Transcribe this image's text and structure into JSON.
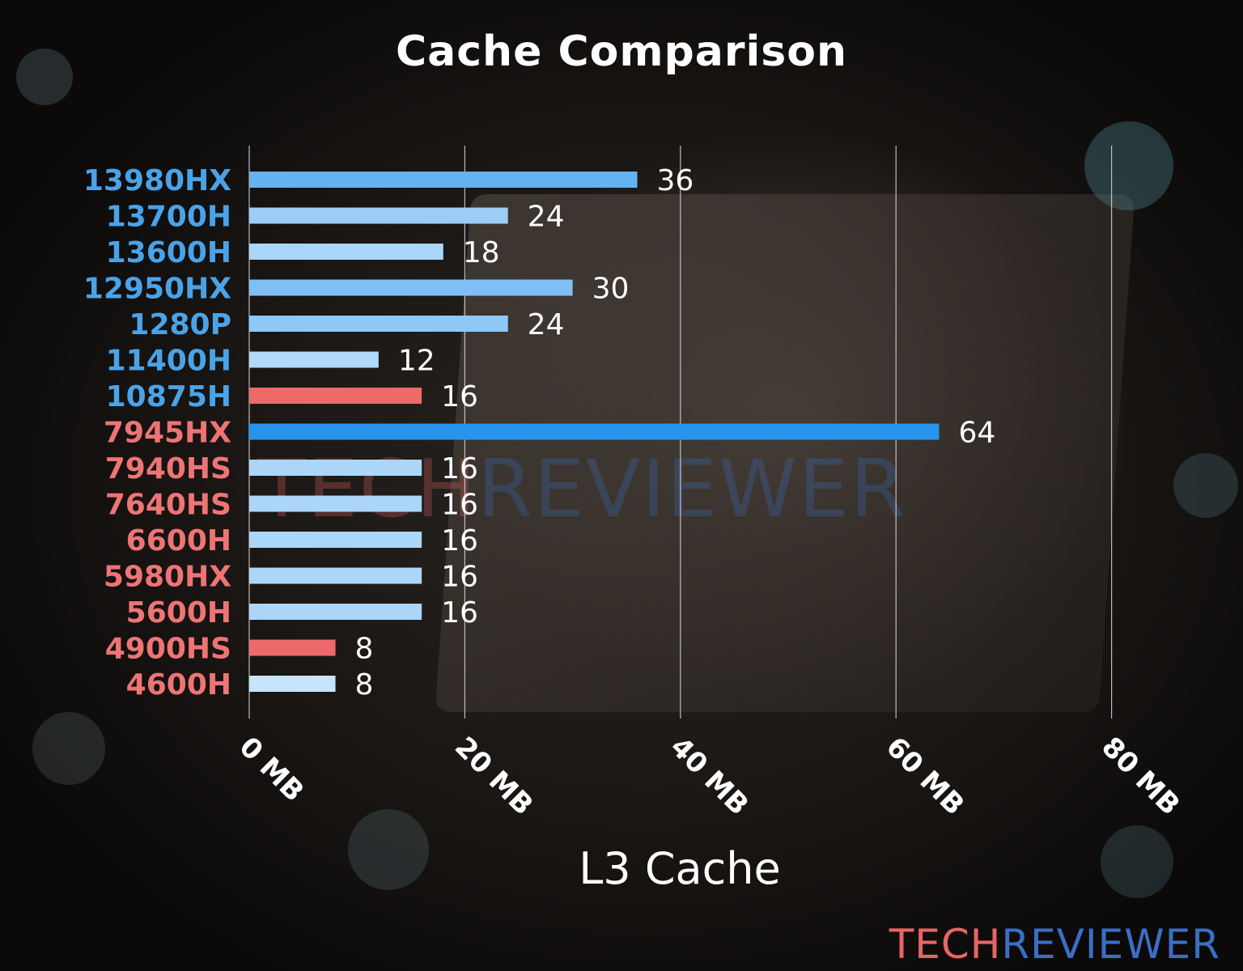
{
  "chart_data": {
    "type": "bar",
    "orientation": "horizontal",
    "title": "Cache Comparison",
    "xlabel": "L3 Cache",
    "ylabel": "",
    "xlim": [
      0,
      80
    ],
    "x_ticks": [
      "0 MB",
      "20 MB",
      "40 MB",
      "60 MB",
      "80 MB"
    ],
    "grid": true,
    "categories": [
      "13980HX",
      "13700H",
      "13600H",
      "12950HX",
      "1280P",
      "11400H",
      "10875H",
      "7945HX",
      "7940HS",
      "7640HS",
      "6600H",
      "5980HX",
      "5600H",
      "4900HS",
      "4600H"
    ],
    "values": [
      36,
      24,
      18,
      30,
      24,
      12,
      16,
      64,
      16,
      16,
      16,
      16,
      16,
      8,
      8
    ],
    "data_labels": [
      "36",
      "24",
      "18",
      "30",
      "24",
      "12",
      "16",
      "64",
      "16",
      "16",
      "16",
      "16",
      "16",
      "8",
      "8"
    ],
    "bar_colors": [
      "#66b2ef",
      "#9ccdf6",
      "#abd6f8",
      "#7fbff3",
      "#90c8f5",
      "#b0d8f8",
      "#ee6a6a",
      "#2694ec",
      "#abd6f8",
      "#abd6f8",
      "#abd6f8",
      "#abd6f8",
      "#abd6f8",
      "#ee6a6a",
      "#c6e4fb"
    ],
    "label_colors": [
      "#4aa3e8",
      "#4aa3e8",
      "#4aa3e8",
      "#4aa3e8",
      "#4aa3e8",
      "#4aa3e8",
      "#4aa3e8",
      "#ee7475",
      "#ee7475",
      "#ee7475",
      "#ee7475",
      "#ee7475",
      "#ee7475",
      "#ee7475",
      "#ee7475"
    ]
  },
  "branding": {
    "logo_part1": "TECH",
    "logo_part2": "REVIEWER",
    "watermark_part1": "TECH",
    "watermark_part2": "REVIEWER"
  },
  "colors": {
    "intel_label": "#4aa3e8",
    "amd_label": "#ee7475",
    "grid": "#d8d8d8",
    "text": "#ffffff"
  }
}
